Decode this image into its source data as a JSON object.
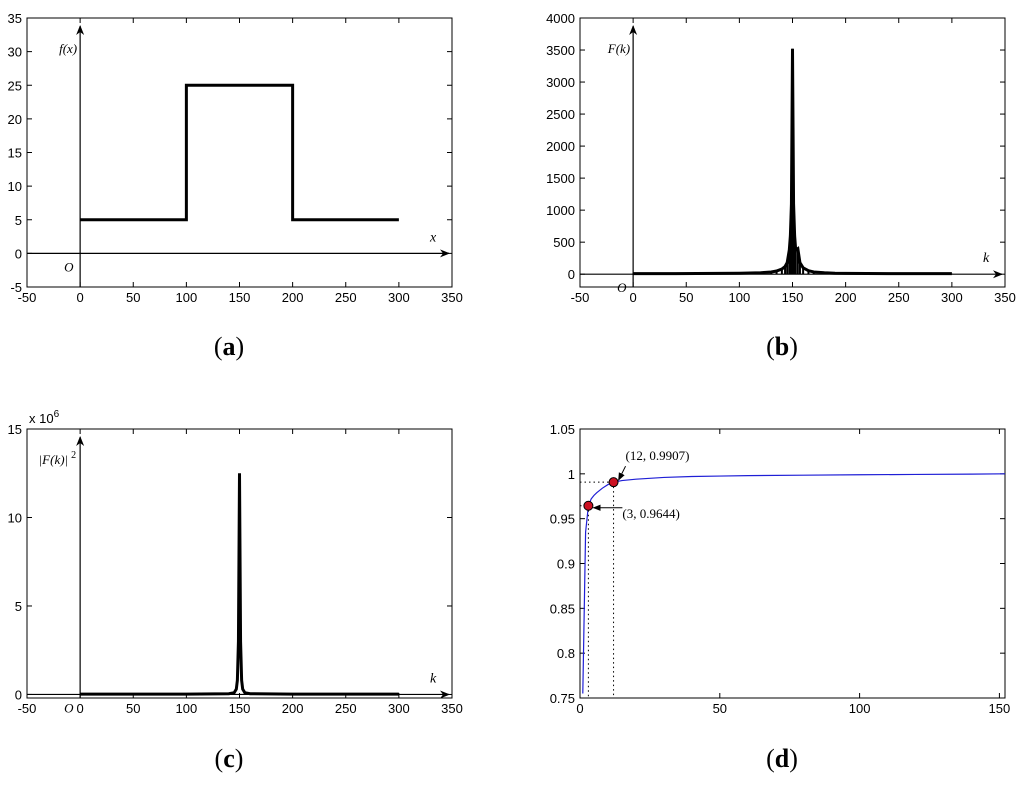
{
  "chart_data": [
    {
      "panel": "a",
      "type": "line",
      "caption_letter": "a",
      "xlim": [
        -50,
        350
      ],
      "ylim": [
        -5,
        35
      ],
      "xticks": [
        -50,
        0,
        50,
        100,
        150,
        200,
        250,
        300,
        350
      ],
      "yticks": [
        -5,
        0,
        5,
        10,
        15,
        20,
        25,
        30,
        35
      ],
      "axis_labels": {
        "x": "x",
        "y": "f(x)",
        "origin": "O"
      },
      "series": [
        {
          "x": [
            0,
            100,
            100,
            200,
            200,
            300
          ],
          "y": [
            5,
            5,
            25,
            25,
            5,
            5
          ]
        }
      ]
    },
    {
      "panel": "b",
      "type": "line",
      "caption_letter": "b",
      "xlim": [
        -50,
        350
      ],
      "ylim": [
        -200,
        4000
      ],
      "xticks": [
        -50,
        0,
        50,
        100,
        150,
        200,
        250,
        300,
        350
      ],
      "yticks": [
        0,
        500,
        1000,
        1500,
        2000,
        2500,
        3000,
        3500,
        4000
      ],
      "axis_labels": {
        "x": "k",
        "y": "F(k)",
        "origin": "O"
      },
      "series": [
        {
          "x": [
            0,
            20,
            40,
            60,
            80,
            100,
            110,
            120,
            130,
            135,
            140,
            143,
            145,
            147,
            148,
            149,
            150,
            151,
            152,
            153,
            155,
            157,
            160,
            165,
            170,
            180,
            190,
            200,
            220,
            240,
            260,
            280,
            300
          ],
          "y": [
            8,
            8,
            9,
            10,
            12,
            15,
            18,
            22,
            35,
            50,
            80,
            120,
            180,
            380,
            600,
            1100,
            3520,
            1100,
            600,
            380,
            400,
            180,
            100,
            55,
            35,
            22,
            15,
            12,
            10,
            9,
            8,
            8,
            8
          ]
        }
      ]
    },
    {
      "panel": "c",
      "type": "line",
      "caption_letter": "c",
      "xlim": [
        -50,
        350
      ],
      "ylim": [
        -0.2,
        15
      ],
      "xticks": [
        -50,
        0,
        50,
        100,
        150,
        200,
        250,
        300,
        350
      ],
      "yticks": [
        0,
        5,
        10,
        15
      ],
      "y_multiplier": "x 10",
      "y_multiplier_exp": "6",
      "axis_labels": {
        "x": "k",
        "y": "|F(k)|",
        "y_sup": "2",
        "origin": "O"
      },
      "series": [
        {
          "x": [
            0,
            100,
            140,
            145,
            147,
            148,
            149,
            150,
            151,
            152,
            153,
            155,
            160,
            200,
            300
          ],
          "y": [
            0.02,
            0.02,
            0.04,
            0.1,
            0.3,
            0.8,
            3.0,
            12.5,
            3.0,
            0.8,
            0.3,
            0.1,
            0.04,
            0.02,
            0.02
          ]
        }
      ]
    },
    {
      "panel": "d",
      "type": "line",
      "caption_letter": "d",
      "xlim": [
        0,
        152
      ],
      "ylim": [
        0.75,
        1.05
      ],
      "xticks": [
        0,
        50,
        100,
        150
      ],
      "yticks": [
        0.75,
        0.8,
        0.85,
        0.9,
        0.95,
        1,
        1.05
      ],
      "ytick_labels": [
        "0.75",
        "0.8",
        "0.85",
        "0.9",
        "0.95",
        "1",
        "1.05"
      ],
      "line_color": "#1f1fd6",
      "marker_color": "#cc1122",
      "series": [
        {
          "x": [
            1,
            2,
            3,
            4,
            5,
            6,
            8,
            10,
            12,
            15,
            20,
            25,
            30,
            40,
            50,
            60,
            80,
            100,
            120,
            140,
            152
          ],
          "y": [
            0.755,
            0.935,
            0.9644,
            0.972,
            0.976,
            0.979,
            0.984,
            0.988,
            0.9907,
            0.9925,
            0.994,
            0.995,
            0.996,
            0.997,
            0.9975,
            0.998,
            0.9985,
            0.999,
            0.9993,
            0.9997,
            1.0
          ]
        }
      ],
      "annotations": [
        {
          "x": 12,
          "y": 0.9907,
          "label": "(12, 0.9907)"
        },
        {
          "x": 3,
          "y": 0.9644,
          "label": "(3, 0.9644)"
        }
      ]
    }
  ]
}
